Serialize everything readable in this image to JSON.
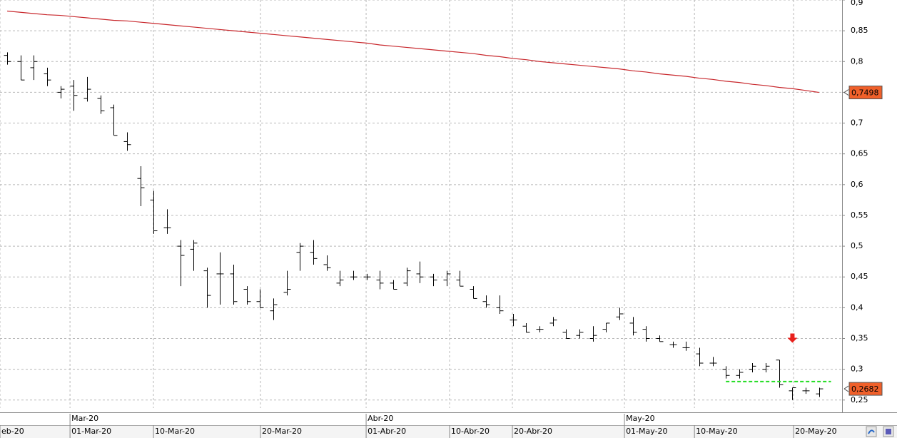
{
  "chart_data": {
    "type": "ohlc",
    "color": "#000000",
    "open": [
      0.81,
      0.8,
      0.79,
      0.78,
      0.75,
      0.76,
      0.74,
      0.74,
      0.725,
      0.67,
      0.61,
      0.575,
      0.53,
      0.5,
      0.495,
      0.46,
      0.455,
      0.455,
      0.43,
      0.41,
      0.395,
      0.425,
      0.49,
      0.49,
      0.47,
      0.44,
      0.45,
      0.45,
      0.445,
      0.44,
      0.44,
      0.455,
      0.45,
      0.445,
      0.445,
      0.43,
      0.41,
      0.4,
      0.38,
      0.37,
      0.365,
      0.375,
      0.36,
      0.355,
      0.35,
      0.365,
      0.385,
      0.375,
      0.365,
      0.35,
      0.34,
      0.335,
      0.325,
      0.31,
      0.3,
      0.29,
      0.3,
      0.3,
      0.315,
      0.265,
      0.265,
      0.26
    ],
    "high": [
      0.815,
      0.81,
      0.81,
      0.79,
      0.76,
      0.77,
      0.775,
      0.745,
      0.73,
      0.685,
      0.63,
      0.59,
      0.56,
      0.51,
      0.51,
      0.465,
      0.49,
      0.47,
      0.435,
      0.43,
      0.415,
      0.46,
      0.505,
      0.51,
      0.485,
      0.46,
      0.46,
      0.455,
      0.46,
      0.445,
      0.465,
      0.475,
      0.455,
      0.46,
      0.46,
      0.435,
      0.42,
      0.42,
      0.39,
      0.375,
      0.37,
      0.385,
      0.365,
      0.365,
      0.37,
      0.375,
      0.4,
      0.385,
      0.37,
      0.355,
      0.345,
      0.345,
      0.335,
      0.32,
      0.305,
      0.3,
      0.31,
      0.31,
      0.315,
      0.27,
      0.27,
      0.27
    ],
    "low": [
      0.795,
      0.77,
      0.77,
      0.76,
      0.74,
      0.72,
      0.735,
      0.715,
      0.68,
      0.655,
      0.565,
      0.52,
      0.52,
      0.435,
      0.46,
      0.4,
      0.405,
      0.405,
      0.405,
      0.4,
      0.38,
      0.42,
      0.46,
      0.47,
      0.46,
      0.435,
      0.445,
      0.445,
      0.43,
      0.43,
      0.435,
      0.44,
      0.435,
      0.435,
      0.435,
      0.415,
      0.4,
      0.39,
      0.37,
      0.36,
      0.36,
      0.37,
      0.35,
      0.35,
      0.345,
      0.36,
      0.38,
      0.355,
      0.345,
      0.345,
      0.335,
      0.33,
      0.305,
      0.305,
      0.285,
      0.285,
      0.295,
      0.295,
      0.27,
      0.25,
      0.26,
      0.255
    ],
    "close": [
      0.8,
      0.77,
      0.8,
      0.77,
      0.755,
      0.745,
      0.755,
      0.72,
      0.68,
      0.665,
      0.595,
      0.525,
      0.53,
      0.485,
      0.505,
      0.42,
      0.455,
      0.41,
      0.41,
      0.4,
      0.405,
      0.43,
      0.5,
      0.48,
      0.465,
      0.445,
      0.45,
      0.45,
      0.44,
      0.43,
      0.46,
      0.45,
      0.445,
      0.455,
      0.435,
      0.415,
      0.405,
      0.395,
      0.38,
      0.36,
      0.365,
      0.38,
      0.35,
      0.36,
      0.355,
      0.375,
      0.39,
      0.36,
      0.35,
      0.345,
      0.34,
      0.335,
      0.31,
      0.31,
      0.29,
      0.295,
      0.305,
      0.305,
      0.275,
      0.27,
      0.265,
      0.2682
    ],
    "ma": {
      "color": "#c8282d",
      "values": [
        0.882,
        0.88,
        0.878,
        0.876,
        0.875,
        0.873,
        0.871,
        0.869,
        0.867,
        0.866,
        0.864,
        0.862,
        0.86,
        0.858,
        0.856,
        0.854,
        0.852,
        0.85,
        0.848,
        0.846,
        0.844,
        0.842,
        0.84,
        0.838,
        0.836,
        0.834,
        0.832,
        0.83,
        0.827,
        0.825,
        0.823,
        0.821,
        0.819,
        0.817,
        0.815,
        0.813,
        0.81,
        0.808,
        0.805,
        0.803,
        0.8,
        0.798,
        0.796,
        0.794,
        0.792,
        0.79,
        0.788,
        0.785,
        0.783,
        0.78,
        0.778,
        0.776,
        0.773,
        0.771,
        0.768,
        0.766,
        0.763,
        0.761,
        0.758,
        0.756,
        0.753,
        0.7498
      ]
    },
    "price_tags": [
      {
        "value": 0.7498,
        "label": "0,7498"
      },
      {
        "value": 0.2682,
        "label": "0,2682"
      }
    ],
    "price_tag_color": "#f0602a",
    "hline": {
      "value": 0.28,
      "color": "#22dd22",
      "from": 54,
      "to": 61.9
    },
    "arrow": {
      "index": 59,
      "value": 0.343,
      "color": "#e8201c"
    },
    "xlim": [
      -0.54,
      62.73
    ],
    "ylim": [
      0.237,
      0.9
    ],
    "yticks": [
      {
        "value": 0.25,
        "label": "0,25"
      },
      {
        "value": 0.3,
        "label": "0,3"
      },
      {
        "value": 0.35,
        "label": "0,35"
      },
      {
        "value": 0.4,
        "label": "0,4"
      },
      {
        "value": 0.45,
        "label": "0,45"
      },
      {
        "value": 0.5,
        "label": "0,5"
      },
      {
        "value": 0.55,
        "label": "0,55"
      },
      {
        "value": 0.6,
        "label": "0,6"
      },
      {
        "value": 0.65,
        "label": "0,65"
      },
      {
        "value": 0.7,
        "label": "0,7"
      },
      {
        "value": 0.75,
        "label": "0,75"
      },
      {
        "value": 0.8,
        "label": "0,8"
      },
      {
        "value": 0.85,
        "label": "0,85"
      },
      {
        "value": 0.9,
        "label": "0,9"
      }
    ],
    "xticks": [
      {
        "value": -0.54,
        "label": "eb-20"
      },
      {
        "value": 4.72,
        "label": "01-Mar-20"
      },
      {
        "value": 10.99,
        "label": "10-Mar-20"
      },
      {
        "value": 19.03,
        "label": "20-Mar-20"
      },
      {
        "value": 26.97,
        "label": "01-Abr-20"
      },
      {
        "value": 33.24,
        "label": "10-Abr-20"
      },
      {
        "value": 37.96,
        "label": "20-Abr-20"
      },
      {
        "value": 46.38,
        "label": "01-May-20"
      },
      {
        "value": 51.64,
        "label": "10-May-20"
      },
      {
        "value": 59.09,
        "label": "20-May-20"
      }
    ],
    "month_ticks": [
      {
        "value": 4.72,
        "label": "Mar-20"
      },
      {
        "value": 26.97,
        "label": "Abr-20"
      },
      {
        "value": 46.38,
        "label": "May-20"
      }
    ],
    "grid": true
  }
}
